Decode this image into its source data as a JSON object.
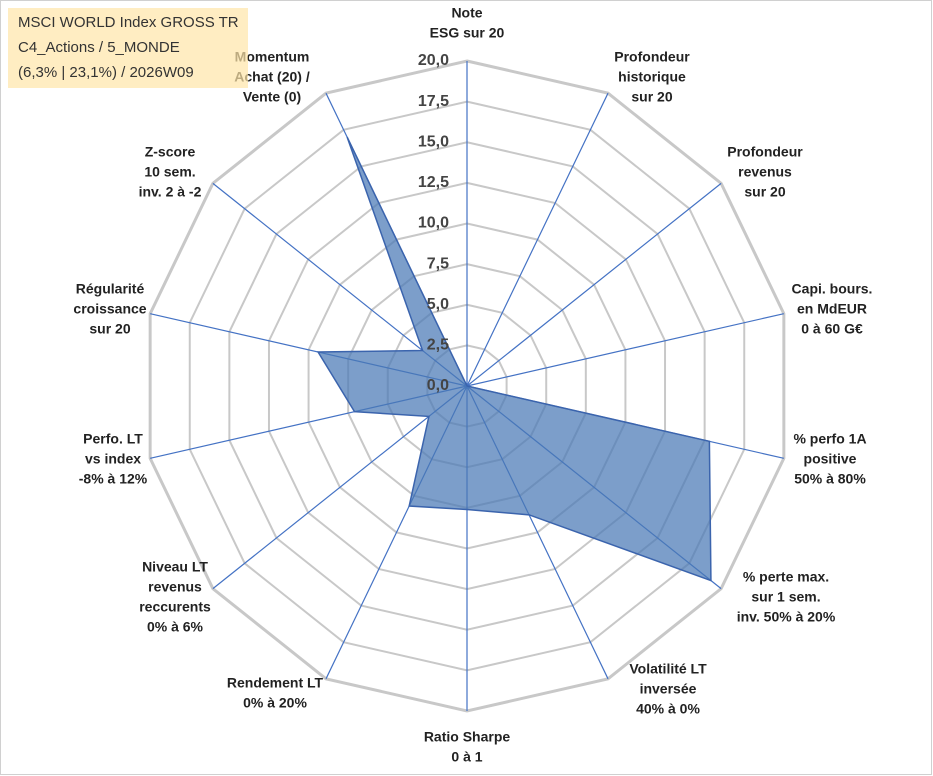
{
  "chart_data": {
    "type": "radar",
    "title_lines": [
      "MSCI WORLD Index GROSS TR",
      "C4_Actions / 5_MONDE",
      "(6,3% | 23,1%) / 2026W09"
    ],
    "categories": [
      [
        "Note",
        "ESG sur 20"
      ],
      [
        "Profondeur",
        "historique",
        "sur 20"
      ],
      [
        "Profondeur",
        "revenus",
        "sur 20"
      ],
      [
        "Capi. bours.",
        "en MdEUR",
        "0 à 60 G€"
      ],
      [
        "% perfo 1A",
        "positive",
        "50% à 80%"
      ],
      [
        "% perte max.",
        "sur 1 sem.",
        "inv. 50% à 20%"
      ],
      [
        "Volatilité LT",
        "inversée",
        "40% à 0%"
      ],
      [
        "Ratio Sharpe",
        "0 à 1"
      ],
      [
        "Rendement LT",
        "0% à 20%"
      ],
      [
        "Niveau LT",
        "revenus",
        "reccurents",
        "0% à 6%"
      ],
      [
        "Perfo. LT",
        "vs index",
        "-8% à 12%"
      ],
      [
        "Régularité",
        "croissance",
        "sur 20"
      ],
      [
        "Z-score",
        "10 sem.",
        "inv. 2 à -2"
      ],
      [
        "Momentum",
        "Achat (20) /",
        "Vente (0)"
      ]
    ],
    "values": [
      0,
      0,
      0,
      0,
      15.3,
      19.2,
      8.8,
      7.6,
      8.2,
      3,
      7.1,
      9.4,
      3.5,
      17
    ],
    "color": "#4a78b5",
    "ylim": [
      0,
      20
    ],
    "yticks": [
      {
        "value": 0,
        "label": "0,0"
      },
      {
        "value": 2.5,
        "label": "2,5"
      },
      {
        "value": 5,
        "label": "5,0"
      },
      {
        "value": 7.5,
        "label": "7,5"
      },
      {
        "value": 10,
        "label": "10,0"
      },
      {
        "value": 12.5,
        "label": "12,5"
      },
      {
        "value": 15,
        "label": "15,0"
      },
      {
        "value": 17.5,
        "label": "17,5"
      },
      {
        "value": 20,
        "label": "20,0"
      }
    ],
    "grid": true
  }
}
